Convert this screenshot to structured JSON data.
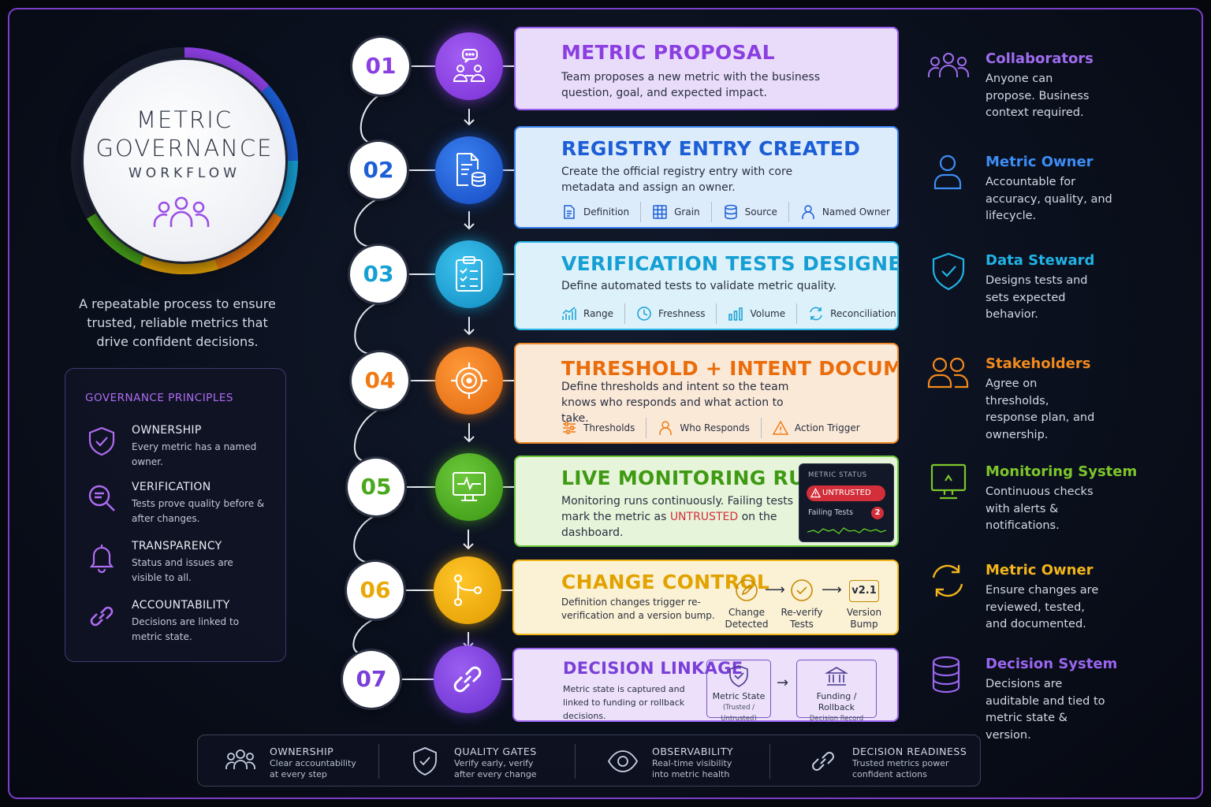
{
  "hero": {
    "title": "METRIC\nGOVERNANCE",
    "subtitle": "WORKFLOW",
    "icon": "people-icon",
    "tagline": "A repeatable process to ensure trusted, reliable metrics that drive confident decisions."
  },
  "principles": {
    "title": "GOVERNANCE PRINCIPLES",
    "items": [
      {
        "title": "OWNERSHIP",
        "desc": "Every metric has a named owner.",
        "icon": "shield-check-icon"
      },
      {
        "title": "VERIFICATION",
        "desc": "Tests prove quality before & after changes.",
        "icon": "magnifier-icon"
      },
      {
        "title": "TRANSPARENCY",
        "desc": "Status and issues are visible to all.",
        "icon": "bell-icon"
      },
      {
        "title": "ACCOUNTABILITY",
        "desc": "Decisions are linked to metric state.",
        "icon": "link-icon"
      }
    ]
  },
  "steps": [
    {
      "num": "01",
      "title": "METRIC PROPOSAL",
      "desc": "Team proposes a new metric with the business question, goal, and expected impact.",
      "color": "#8b3fe0",
      "icon": "chat-people-icon"
    },
    {
      "num": "02",
      "title": "REGISTRY ENTRY CREATED",
      "desc": "Create the official registry entry with core metadata and assign an owner.",
      "color": "#1c5ed6",
      "icon": "document-database-icon",
      "tags": [
        "Definition",
        "Grain",
        "Source",
        "Named Owner"
      ]
    },
    {
      "num": "03",
      "title": "VERIFICATION TESTS DESIGNED",
      "desc": "Define automated tests to validate metric quality.",
      "color": "#159fd3",
      "icon": "clipboard-check-icon",
      "tags": [
        "Range",
        "Freshness",
        "Volume",
        "Reconciliation"
      ]
    },
    {
      "num": "04",
      "title": "THRESHOLD + INTENT DOCUMENTED",
      "desc": "Define thresholds and intent so the team knows who responds and what action to take.",
      "color": "#f07a12",
      "icon": "target-icon",
      "tags": [
        "Thresholds",
        "Who Responds",
        "Action Trigger"
      ]
    },
    {
      "num": "05",
      "title": "LIVE MONITORING RUNS",
      "desc_pre": "Monitoring runs continuously. Failing tests mark the metric as ",
      "desc_highlight": "UNTRUSTED",
      "desc_post": " on the dashboard.",
      "color": "#4aa81c",
      "icon": "monitor-pulse-icon",
      "status": {
        "label": "METRIC STATUS",
        "badge": "UNTRUSTED",
        "failing": "Failing Tests",
        "count": "2"
      }
    },
    {
      "num": "06",
      "title": "CHANGE CONTROL",
      "desc": "Definition changes trigger re-verification and a version bump.",
      "color": "#e9a805",
      "icon": "branch-icon",
      "flow": [
        {
          "label": "Change\nDetected"
        },
        {
          "label": "Re-verify\nTests"
        },
        {
          "label": "Version\nBump",
          "badge": "v2.1"
        }
      ]
    },
    {
      "num": "07",
      "title": "DECISION LINKAGE",
      "desc": "Metric state is captured and linked to funding or rollback decisions.",
      "color": "#7a3fd8",
      "icon": "link-icon",
      "boxes": [
        {
          "label": "Metric State",
          "sub": "(Trusted / Untrusted)"
        },
        {
          "label": "Funding / Rollback",
          "sub": "Decision Record"
        }
      ]
    }
  ],
  "roles": [
    {
      "title": "Collaborators",
      "desc": "Anyone can propose. Business context required.",
      "color": "#a06cf0",
      "icon": "group-icon"
    },
    {
      "title": "Metric Owner",
      "desc": "Accountable for accuracy, quality, and lifecycle.",
      "color": "#3d8df5",
      "icon": "person-icon"
    },
    {
      "title": "Data Steward",
      "desc": "Designs tests and sets expected behavior.",
      "color": "#21b3e6",
      "icon": "shield-check-icon"
    },
    {
      "title": "Stakeholders",
      "desc": "Agree on thresholds, response plan, and ownership.",
      "color": "#f28a1e",
      "icon": "two-people-icon"
    },
    {
      "title": "Monitoring System",
      "desc": "Continuous checks with alerts & notifications.",
      "color": "#7cc62a",
      "icon": "monitor-icon"
    },
    {
      "title": "Metric Owner",
      "desc": "Ensure changes are reviewed, tested, and documented.",
      "color": "#f2b51a",
      "icon": "refresh-icon"
    },
    {
      "title": "Decision System",
      "desc": "Decisions are auditable and tied to metric state & version.",
      "color": "#9a66f0",
      "icon": "database-icon"
    }
  ],
  "bottom": [
    {
      "title": "OWNERSHIP",
      "desc": "Clear accountability\nat every step",
      "icon": "group-icon"
    },
    {
      "title": "QUALITY GATES",
      "desc": "Verify early, verify\nafter every change",
      "icon": "shield-check-icon"
    },
    {
      "title": "OBSERVABILITY",
      "desc": "Real-time visibility\ninto metric health",
      "icon": "eye-icon"
    },
    {
      "title": "DECISION READINESS",
      "desc": "Trusted metrics power\nconfident actions",
      "icon": "link-icon"
    }
  ]
}
